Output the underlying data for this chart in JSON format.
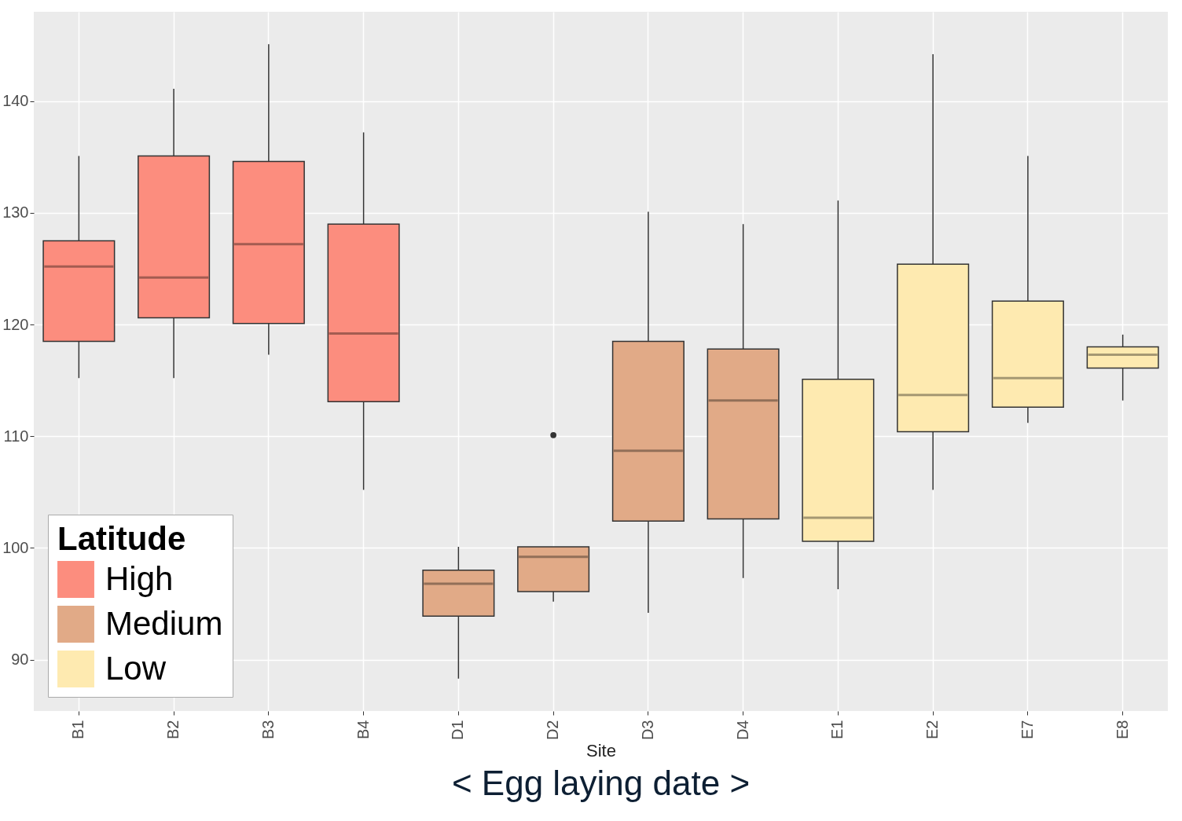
{
  "chart_data": {
    "type": "box",
    "xlabel": "Site",
    "legend_title": "Latitude",
    "legend": "bottom left",
    "grid": true,
    "annotations": [
      "< Egg laying date  >"
    ],
    "categories": [
      "B1",
      "B2",
      "B3",
      "B4",
      "D1",
      "D2",
      "D3",
      "D4",
      "E1",
      "E2",
      "E7",
      "E8"
    ],
    "ylim": [
      85.4,
      148
    ],
    "yticks": [
      90,
      100,
      110,
      120,
      130,
      140
    ],
    "series": [
      {
        "name": "High",
        "color": "#fc8d7e",
        "boxes": [
          {
            "low": 115.2,
            "q1": 118.5,
            "median": 125.2,
            "q3": 127.5,
            "high": 135.1
          },
          {
            "low": 115.2,
            "q1": 120.6,
            "median": 124.2,
            "q3": 135.1,
            "high": 141.1
          },
          {
            "low": 117.3,
            "q1": 120.1,
            "median": 127.2,
            "q3": 134.6,
            "high": 145.1
          },
          {
            "low": 105.2,
            "q1": 113.1,
            "median": 119.2,
            "q3": 129.0,
            "high": 137.2
          },
          null,
          null,
          null,
          null,
          null,
          null,
          null,
          null
        ]
      },
      {
        "name": "Medium",
        "color": "#e1aa87",
        "boxes": [
          null,
          null,
          null,
          null,
          {
            "low": 88.3,
            "q1": 93.9,
            "median": 96.8,
            "q3": 98.0,
            "high": 100.1
          },
          {
            "low": 95.2,
            "q1": 96.1,
            "median": 99.2,
            "q3": 100.1,
            "high": 100.1,
            "outliers": [
              110.1
            ]
          },
          {
            "low": 94.2,
            "q1": 102.4,
            "median": 108.7,
            "q3": 118.5,
            "high": 130.1
          },
          {
            "low": 97.3,
            "q1": 102.6,
            "median": 113.2,
            "q3": 117.8,
            "high": 129.0
          },
          null,
          null,
          null,
          null
        ]
      },
      {
        "name": "Low",
        "color": "#feeab0",
        "boxes": [
          null,
          null,
          null,
          null,
          null,
          null,
          null,
          null,
          {
            "low": 96.3,
            "q1": 100.6,
            "median": 102.7,
            "q3": 115.1,
            "high": 131.1
          },
          {
            "low": 105.2,
            "q1": 110.4,
            "median": 113.7,
            "q3": 125.4,
            "high": 144.2
          },
          {
            "low": 111.2,
            "q1": 112.6,
            "median": 115.2,
            "q3": 122.1,
            "high": 135.1
          },
          {
            "low": 113.2,
            "q1": 116.1,
            "median": 117.3,
            "q3": 118.0,
            "high": 119.1
          }
        ]
      }
    ]
  }
}
